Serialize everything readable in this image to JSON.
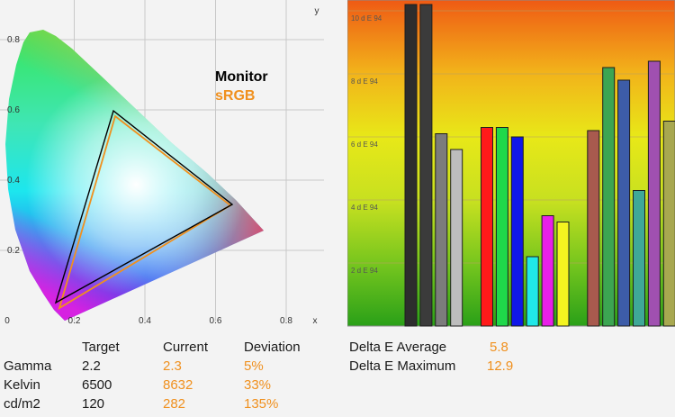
{
  "cie_chart": {
    "axis_x_label": "x",
    "axis_y_label": "y",
    "x_ticks": [
      0,
      0.2,
      0.4,
      0.6,
      0.8
    ],
    "y_ticks": [
      0.2,
      0.4,
      0.6,
      0.8
    ],
    "x_tick_labels": [
      "0",
      "0.2",
      "0.4",
      "0.6",
      "0.8"
    ],
    "y_tick_labels": [
      "0.2",
      "0.4",
      "0.6",
      "0.8"
    ],
    "legend_monitor": "Monitor",
    "legend_srgb": "sRGB",
    "colors": {
      "monitor": "#000000",
      "srgb": "#f0901e"
    }
  },
  "chart_data": {
    "type": "bar",
    "ylabel_unit": "d E 94",
    "y_tick_labels": [
      "10 d E 94",
      "8 d E 94",
      "6 d E 94",
      "4 d E 94",
      "2 d E 94"
    ],
    "y_ticks": [
      10,
      8,
      6,
      4,
      2
    ],
    "ylim": [
      0,
      10.2
    ],
    "grid": true,
    "values": [
      10.2,
      10.2,
      6.1,
      5.6,
      0,
      6.3,
      6.3,
      6.0,
      2.2,
      3.5,
      3.3,
      0,
      6.2,
      8.2,
      7.8,
      4.3,
      8.4,
      6.5
    ],
    "colors": [
      "#2d2d2d",
      "#3b3b3b",
      "#7c7c7c",
      "#bdbdbd",
      "",
      "#ff1a1a",
      "#1fd84a",
      "#1018e8",
      "#20e8e8",
      "#e820e8",
      "#f4f420",
      "",
      "#a85a4e",
      "#3ca552",
      "#3d5ca8",
      "#3fa898",
      "#a050b0",
      "#a8a850"
    ]
  },
  "stats": {
    "headers": {
      "target": "Target",
      "current": "Current",
      "deviation": "Deviation"
    },
    "rows": [
      {
        "label": "Gamma",
        "target": "2.2",
        "current": "2.3",
        "deviation": "5%"
      },
      {
        "label": "Kelvin",
        "target": "6500",
        "current": "8632",
        "deviation": "33%"
      },
      {
        "label": "cd/m2",
        "target": "120",
        "current": "282",
        "deviation": "135%"
      }
    ]
  },
  "delta": {
    "avg_label": "Delta E Average",
    "avg_value": "5.8",
    "max_label": "Delta E Maximum",
    "max_value": "12.9"
  }
}
